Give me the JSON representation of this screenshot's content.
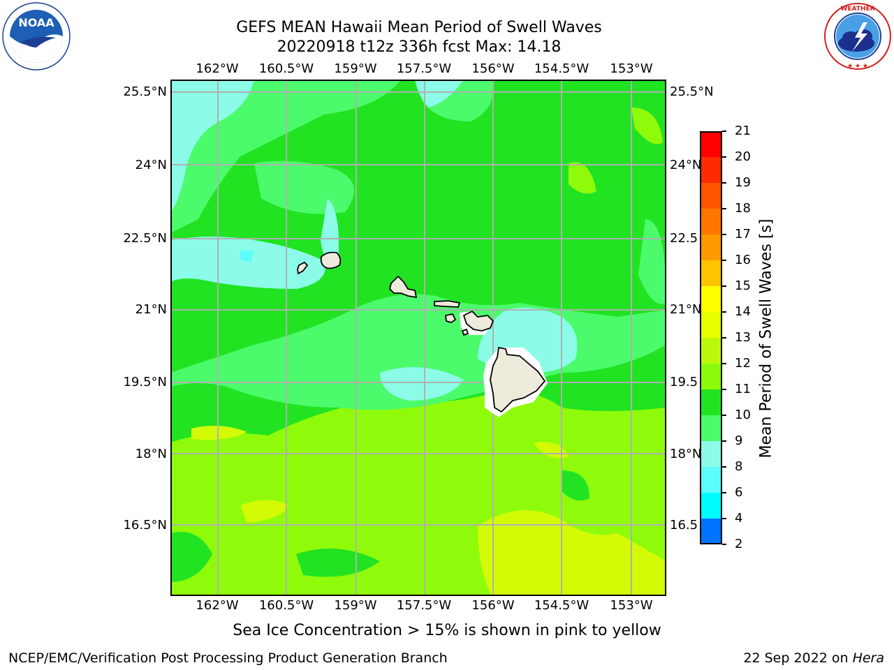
{
  "title": {
    "line1": "GEFS MEAN Hawaii Mean Period of Swell Waves",
    "line2": "20220918 t12z 336h fcst   Max: 14.18"
  },
  "logos": {
    "left": {
      "name": "NOAA",
      "text": "NOAA",
      "ring_text": "NATIONAL OCEANIC AND ATMOSPHERIC ADMINISTRATION · U.S. DEPARTMENT OF COMMERCE"
    },
    "right": {
      "name": "National Weather Service",
      "ring_text": "NATIONAL WEATHER SERVICE"
    }
  },
  "map": {
    "lon_labels": [
      "162°W",
      "160.5°W",
      "159°W",
      "157.5°W",
      "156°W",
      "154.5°W",
      "153°W"
    ],
    "lat_labels_left": [
      "25.5°N",
      "24°N",
      "22.5°N",
      "21°N",
      "19.5°N",
      "18°N",
      "16.5°N"
    ],
    "lat_labels_right": [
      "25.5°N",
      "24°N",
      "22.5",
      "21°N",
      "19.5",
      "18°N",
      "16.5"
    ],
    "ocean_colors": {
      "cyan_light": "#8cfce8",
      "green_light": "#4cfb6c",
      "green": "#21e322",
      "yellow_green": "#8ffb0a",
      "yellow": "#d3fb06"
    },
    "land_color": "#eeebdc"
  },
  "colorbar": {
    "label": "Mean Period of Swell Waves [s]",
    "ticks": [
      "21",
      "20",
      "19",
      "18",
      "17",
      "16",
      "15",
      "14",
      "13",
      "12",
      "11",
      "10",
      "9",
      "8",
      "6",
      "4",
      "2"
    ],
    "colors": [
      "#ff0000",
      "#ff2b00",
      "#ff5500",
      "#ff7700",
      "#ff9900",
      "#ffc400",
      "#ffff00",
      "#e8ff00",
      "#bcf80b",
      "#8bfb0b",
      "#21e322",
      "#4cfb6c",
      "#8cfce8",
      "#5cfcfc",
      "#00fcfc",
      "#0073ff",
      "#0000ff"
    ]
  },
  "caption": "Sea Ice Concentration > 15% is shown in pink to yellow",
  "footer": {
    "left": "NCEP/EMC/Verification Post Processing Product Generation Branch",
    "right_date": "22 Sep 2022 on ",
    "right_host": "Hera"
  }
}
